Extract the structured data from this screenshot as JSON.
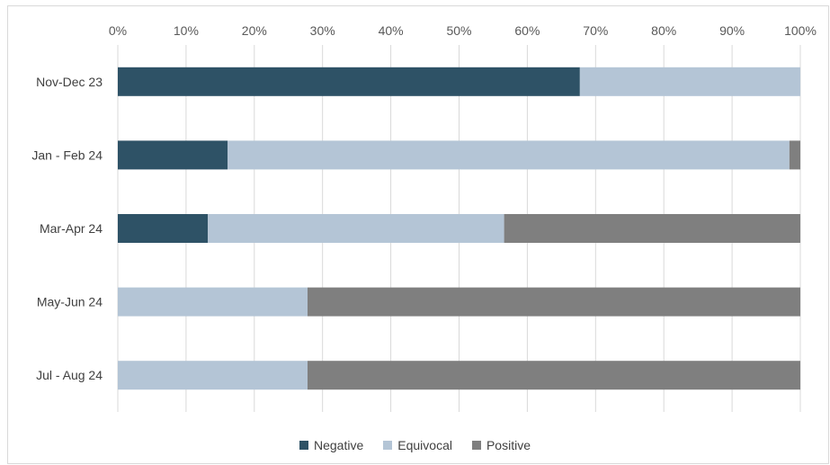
{
  "chart_data": {
    "type": "bar",
    "orientation": "horizontal",
    "stacked": "100%",
    "categories": [
      "Nov-Dec 23",
      "Jan - Feb 24",
      "Mar-Apr 24",
      "May-Jun 24",
      "Jul - Aug 24"
    ],
    "series": [
      {
        "name": "Negative",
        "color": "#2e5266",
        "values": [
          67.7,
          16.1,
          13.2,
          0,
          0
        ]
      },
      {
        "name": "Equivocal",
        "color": "#b4c5d6",
        "values": [
          32.3,
          82.3,
          43.4,
          27.8,
          27.8
        ]
      },
      {
        "name": "Positive",
        "color": "#7f7f7f",
        "values": [
          0,
          1.6,
          43.4,
          72.2,
          72.2
        ]
      }
    ],
    "xaxis": {
      "ticks": [
        "0%",
        "10%",
        "20%",
        "30%",
        "40%",
        "50%",
        "60%",
        "70%",
        "80%",
        "90%",
        "100%"
      ],
      "range": [
        0,
        100
      ],
      "position": "top"
    },
    "grid": true,
    "legend_position": "bottom"
  }
}
